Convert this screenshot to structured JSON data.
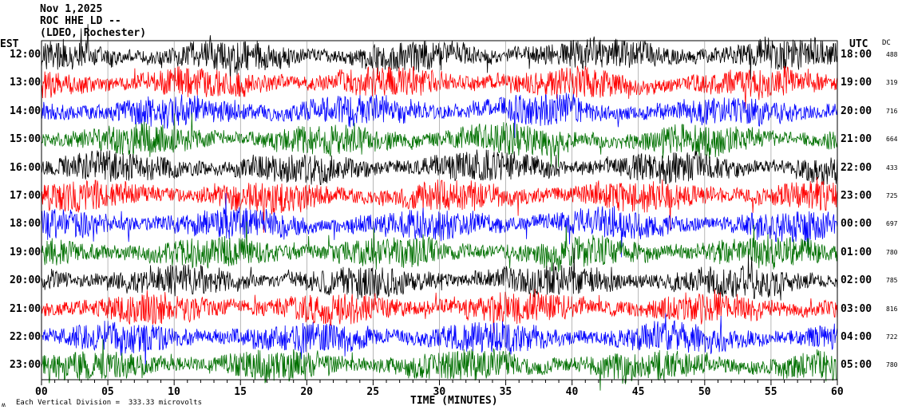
{
  "header": {
    "date": "Nov 1,2025",
    "station": "ROC HHE LD --",
    "network": "(LDEO, Rochester)"
  },
  "left_timezone": "EST",
  "right_timezone": "UTC",
  "dc_label": "DC",
  "footer": {
    "scale": "Each Vertical Division =  333.33 microvolts",
    "logo": "M"
  },
  "colors": {
    "black": "#000000",
    "red": "#ff0000",
    "blue": "#0000ff",
    "green": "#007000"
  },
  "chart_data": {
    "type": "line",
    "xlabel": "TIME (MINUTES)",
    "xlim": [
      0,
      60
    ],
    "x_ticks": [
      "00",
      "05",
      "10",
      "15",
      "20",
      "25",
      "30",
      "35",
      "40",
      "45",
      "50",
      "55",
      "60"
    ],
    "rows": [
      {
        "est": "12:00",
        "utc": "18:00",
        "dc": "488",
        "color": "#000000"
      },
      {
        "est": "13:00",
        "utc": "19:00",
        "dc": "319",
        "color": "#ff0000"
      },
      {
        "est": "14:00",
        "utc": "20:00",
        "dc": "716",
        "color": "#0000ff"
      },
      {
        "est": "15:00",
        "utc": "21:00",
        "dc": "664",
        "color": "#007000"
      },
      {
        "est": "16:00",
        "utc": "22:00",
        "dc": "433",
        "color": "#000000"
      },
      {
        "est": "17:00",
        "utc": "23:00",
        "dc": "725",
        "color": "#ff0000"
      },
      {
        "est": "18:00",
        "utc": "00:00",
        "dc": "697",
        "color": "#0000ff"
      },
      {
        "est": "19:00",
        "utc": "01:00",
        "dc": "780",
        "color": "#007000"
      },
      {
        "est": "20:00",
        "utc": "02:00",
        "dc": "785",
        "color": "#000000"
      },
      {
        "est": "21:00",
        "utc": "03:00",
        "dc": "816",
        "color": "#ff0000"
      },
      {
        "est": "22:00",
        "utc": "04:00",
        "dc": "722",
        "color": "#0000ff"
      },
      {
        "est": "23:00",
        "utc": "05:00",
        "dc": "780",
        "color": "#007000"
      }
    ]
  }
}
